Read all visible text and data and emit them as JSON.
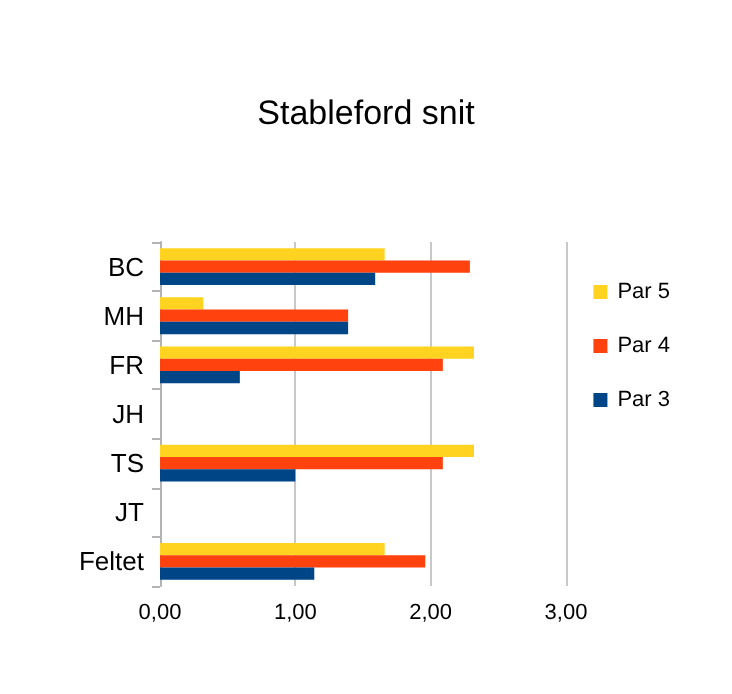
{
  "chart_data": {
    "type": "bar",
    "orientation": "horizontal",
    "title": "Stableford snit",
    "categories": [
      "BC",
      "MH",
      "FR",
      "JH",
      "TS",
      "JT",
      "Feltet"
    ],
    "series": [
      {
        "name": "Par 5",
        "color": "#ffd320",
        "values": [
          1.66,
          0.32,
          2.32,
          null,
          2.32,
          null,
          1.66
        ]
      },
      {
        "name": "Par 4",
        "color": "#ff420e",
        "values": [
          2.29,
          1.39,
          2.09,
          null,
          2.09,
          null,
          1.96
        ]
      },
      {
        "name": "Par 3",
        "color": "#004586",
        "values": [
          1.59,
          1.39,
          0.59,
          null,
          1.0,
          null,
          1.14
        ]
      }
    ],
    "xlim": [
      0,
      3
    ],
    "xticks": [
      {
        "value": 0,
        "label": "0,00"
      },
      {
        "value": 1,
        "label": "1,00"
      },
      {
        "value": 2,
        "label": "2,00"
      },
      {
        "value": 3,
        "label": "3,00"
      }
    ],
    "grid": "x",
    "legend": "right"
  }
}
